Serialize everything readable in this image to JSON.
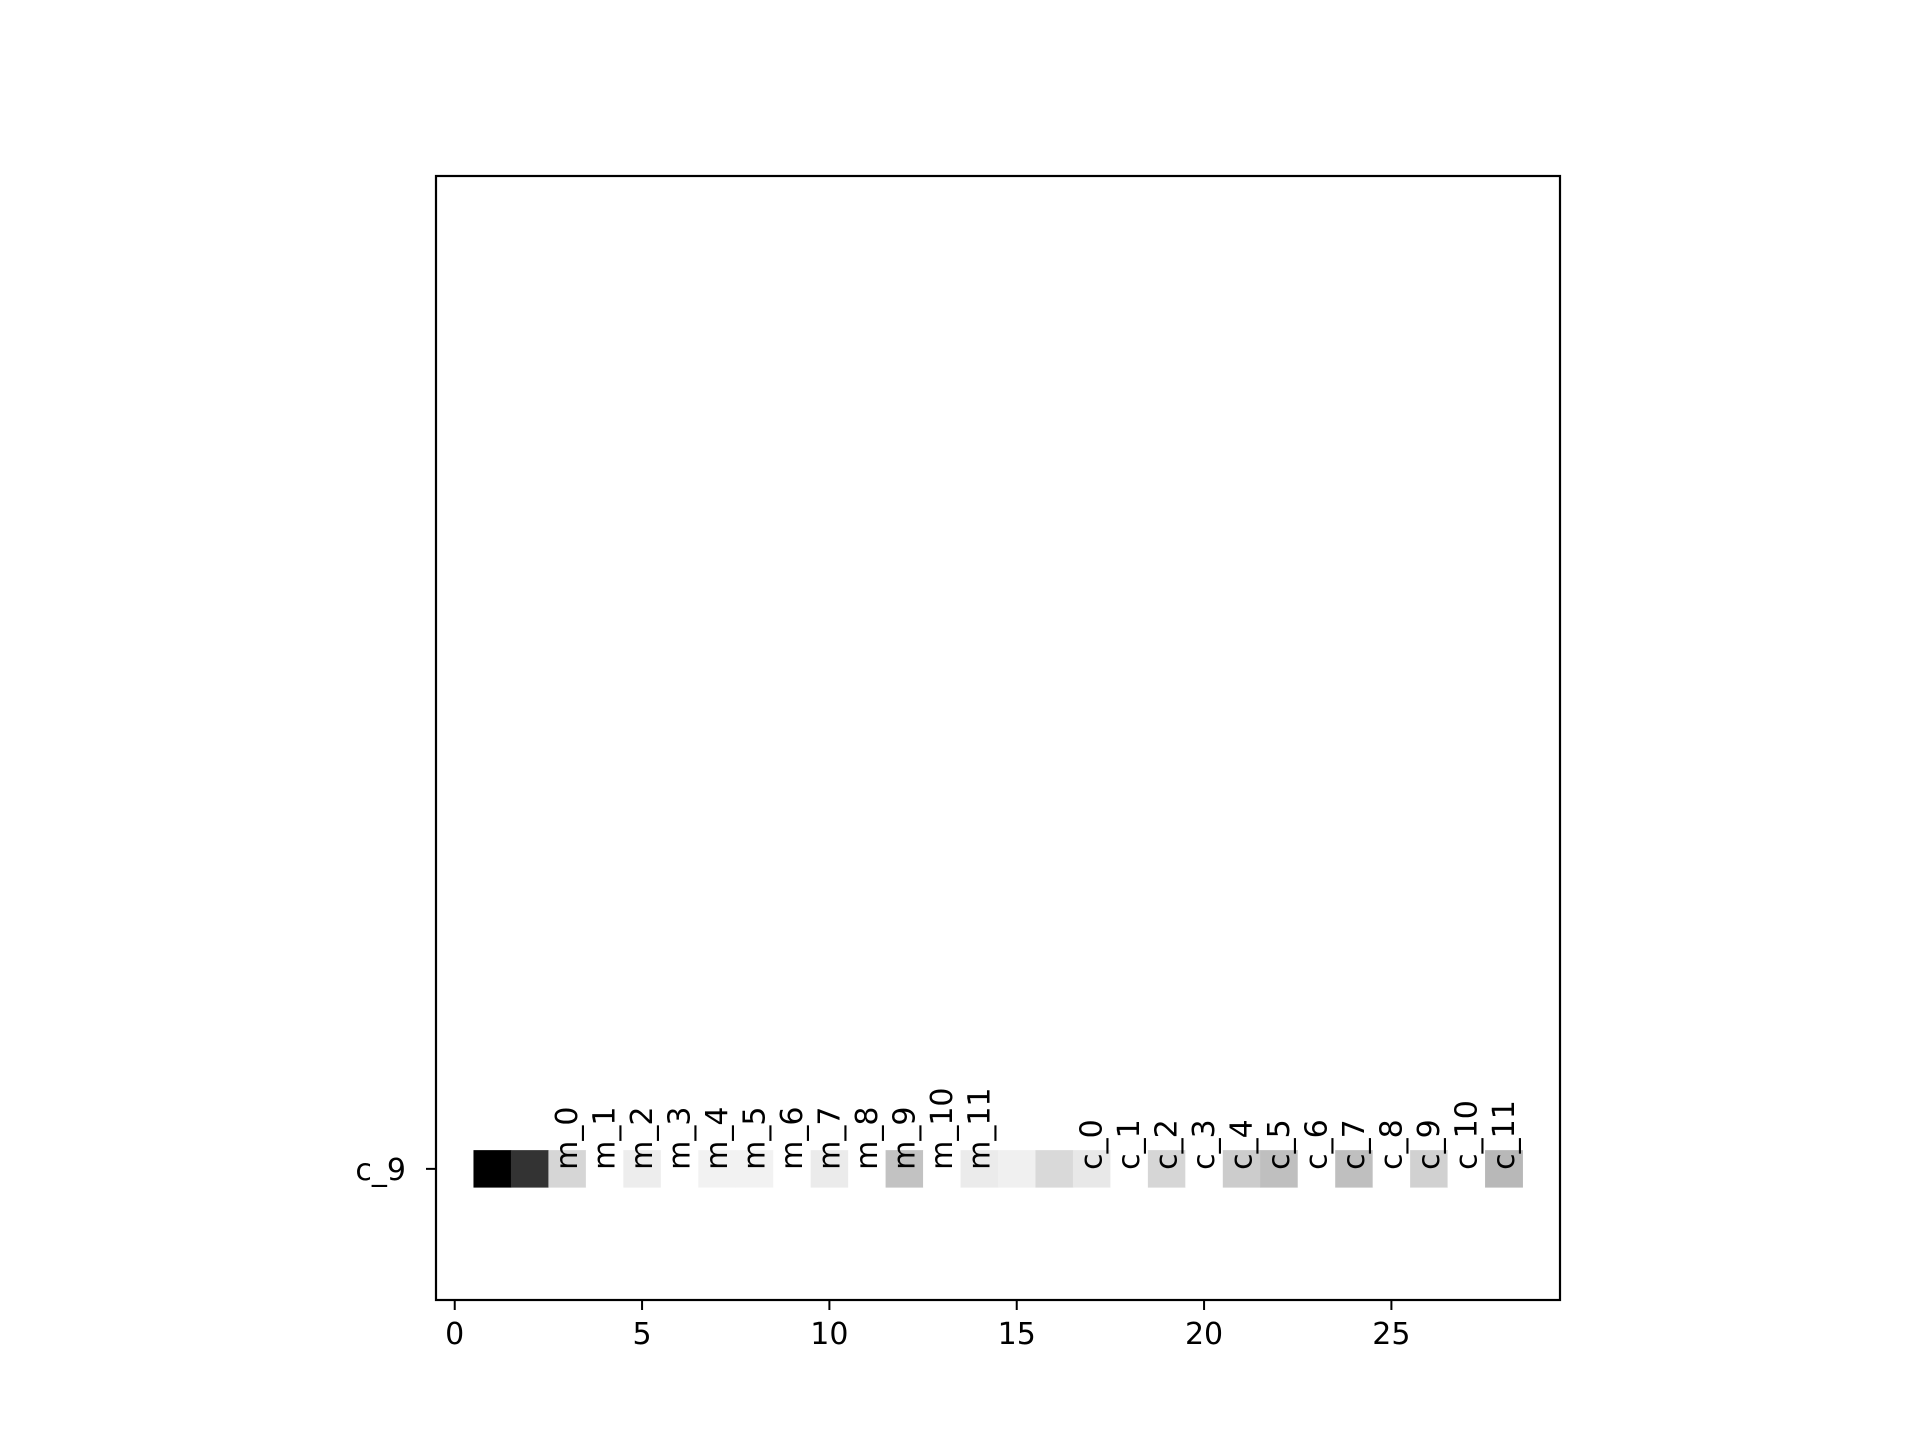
{
  "chart_data": {
    "type": "heatmap",
    "colormap": "grayscale (dark = high)",
    "grid": false,
    "x_axis": {
      "lim": [
        -0.5,
        29.5
      ],
      "ticks": [
        0,
        5,
        10,
        15,
        20,
        25
      ],
      "tick_labels": [
        "0",
        "5",
        "10",
        "15",
        "20",
        "25"
      ]
    },
    "y_axis": {
      "lim": [
        -3.5,
        26.5
      ],
      "inverted": false,
      "ticks": [
        0
      ],
      "tick_labels": [
        "c_9"
      ]
    },
    "rows": [
      {
        "label": "c_9",
        "y": 0,
        "cells": [
          {
            "x": 1,
            "value": 1.0
          },
          {
            "x": 2,
            "value": 0.8
          },
          {
            "x": 3,
            "value": 0.16
          },
          {
            "x": 4,
            "value": 0.0
          },
          {
            "x": 5,
            "value": 0.07
          },
          {
            "x": 6,
            "value": 0.0
          },
          {
            "x": 7,
            "value": 0.05
          },
          {
            "x": 8,
            "value": 0.05
          },
          {
            "x": 9,
            "value": 0.0
          },
          {
            "x": 10,
            "value": 0.08
          },
          {
            "x": 11,
            "value": 0.0
          },
          {
            "x": 12,
            "value": 0.24
          },
          {
            "x": 13,
            "value": 0.0
          },
          {
            "x": 14,
            "value": 0.08
          },
          {
            "x": 15,
            "value": 0.06
          },
          {
            "x": 16,
            "value": 0.15
          },
          {
            "x": 17,
            "value": 0.09
          },
          {
            "x": 18,
            "value": 0.0
          },
          {
            "x": 19,
            "value": 0.16
          },
          {
            "x": 20,
            "value": 0.0
          },
          {
            "x": 21,
            "value": 0.2
          },
          {
            "x": 22,
            "value": 0.25
          },
          {
            "x": 23,
            "value": 0.0
          },
          {
            "x": 24,
            "value": 0.25
          },
          {
            "x": 25,
            "value": 0.0
          },
          {
            "x": 26,
            "value": 0.18
          },
          {
            "x": 27,
            "value": 0.0
          },
          {
            "x": 28,
            "value": 0.28
          }
        ]
      }
    ],
    "annotations": [
      {
        "text": "m_0",
        "x": 3
      },
      {
        "text": "m_1",
        "x": 4
      },
      {
        "text": "m_2",
        "x": 5
      },
      {
        "text": "m_3",
        "x": 6
      },
      {
        "text": "m_4",
        "x": 7
      },
      {
        "text": "m_5",
        "x": 8
      },
      {
        "text": "m_6",
        "x": 9
      },
      {
        "text": "m_7",
        "x": 10
      },
      {
        "text": "m_8",
        "x": 11
      },
      {
        "text": "m_9",
        "x": 12
      },
      {
        "text": "m_10",
        "x": 13
      },
      {
        "text": "m_11",
        "x": 14
      },
      {
        "text": "c_0",
        "x": 17
      },
      {
        "text": "c_1",
        "x": 18
      },
      {
        "text": "c_2",
        "x": 19
      },
      {
        "text": "c_3",
        "x": 20
      },
      {
        "text": "c_4",
        "x": 21
      },
      {
        "text": "c_5",
        "x": 22
      },
      {
        "text": "c_6",
        "x": 23
      },
      {
        "text": "c_7",
        "x": 24
      },
      {
        "text": "c_8",
        "x": 25
      },
      {
        "text": "c_9",
        "x": 26
      },
      {
        "text": "c_10",
        "x": 27
      },
      {
        "text": "c_11",
        "x": 28
      }
    ]
  }
}
